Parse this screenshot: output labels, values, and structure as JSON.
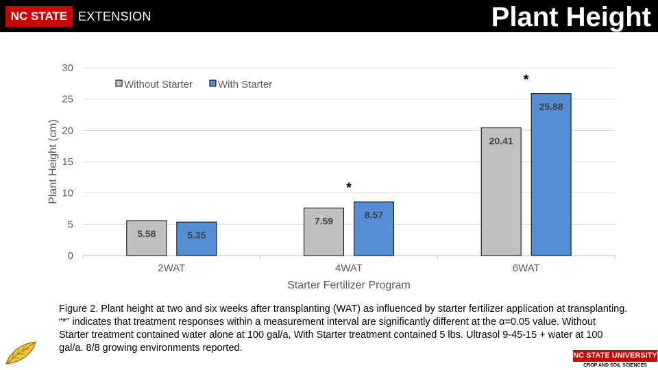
{
  "header": {
    "brand": "NC STATE",
    "brand_sub": "EXTENSION",
    "title": "Plant Height"
  },
  "colors": {
    "without": "#c0c0c0",
    "with": "#558ed5",
    "brand_red": "#cc0000"
  },
  "chart_data": {
    "type": "bar",
    "categories": [
      "2WAT",
      "4WAT",
      "6WAT"
    ],
    "series": [
      {
        "name": "Without Starter",
        "values": [
          5.58,
          7.59,
          20.41
        ],
        "color": "#c0c0c0"
      },
      {
        "name": "With Starter",
        "values": [
          5.35,
          8.57,
          25.88
        ],
        "color": "#558ed5"
      }
    ],
    "data_labels": [
      [
        "5.58",
        "7.59",
        "20.41"
      ],
      [
        "5.35",
        "8.57",
        "25.88"
      ]
    ],
    "significance": [
      "",
      "*",
      "*"
    ],
    "xlabel": "Starter Fertilizer Program",
    "ylabel": "Plant Height (cm)",
    "ylim": [
      0,
      30
    ],
    "yticks": [
      0,
      5,
      10,
      15,
      20,
      25,
      30
    ],
    "grid": true,
    "legend": "top-left"
  },
  "caption": "Figure 2. Plant height at two and six weeks after transplanting (WAT) as influenced by starter fertilizer application at transplanting. “*” indicates that treatment responses within a measurement interval are significantly different at the α=0.05 value. Without Starter treatment contained water alone at 100 gal/a, With Starter treatment contained 5 lbs. Ultrasol 9-45-15 + water at 100 gal/a. 8/8 growing environments reported.",
  "footer": {
    "logo_text": "NC STATE UNIVERSITY",
    "dept": "CROP AND SOIL SCIENCES"
  }
}
